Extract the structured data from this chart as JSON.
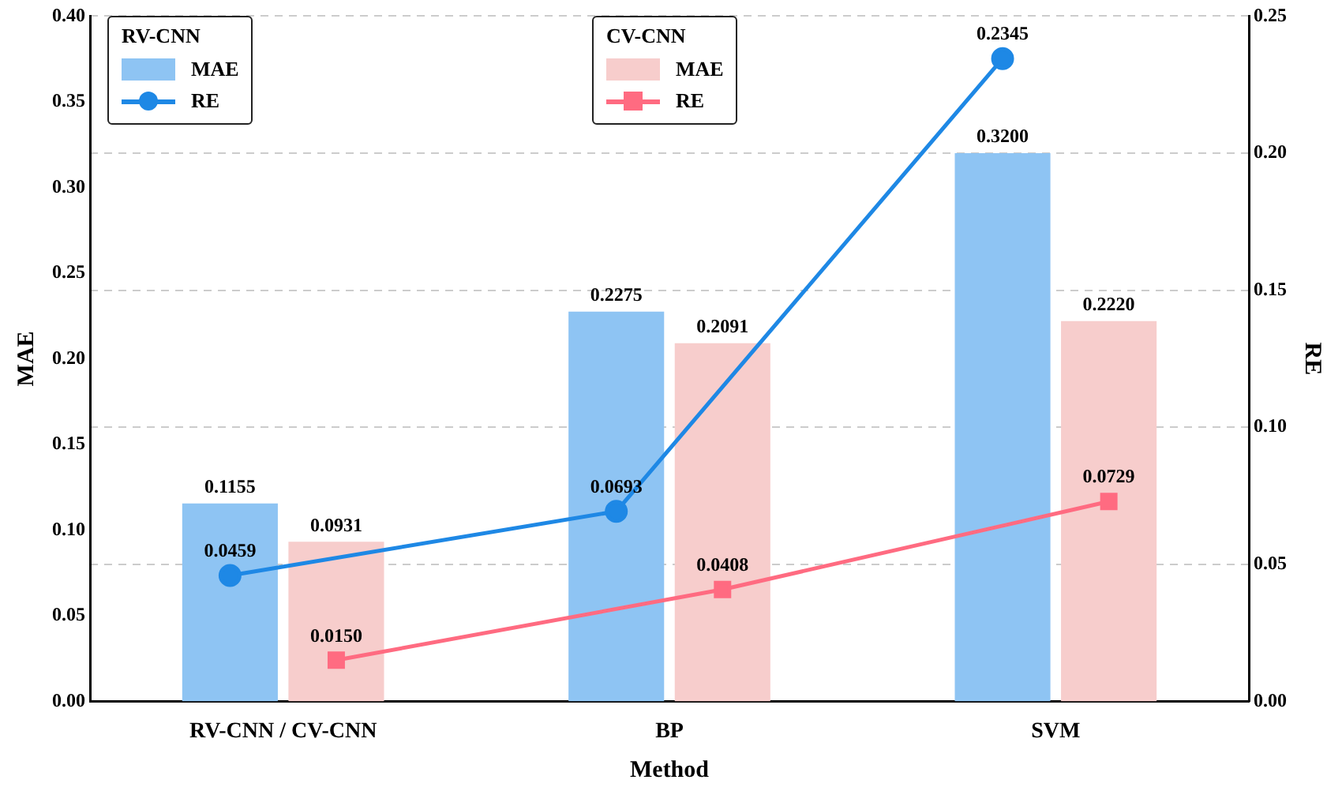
{
  "chart_data": {
    "type": "bar",
    "xlabel": "Method",
    "ylabel": "MAE",
    "y2label": "RE",
    "legend_title": [
      "RV-CNN",
      "CV-CNN"
    ],
    "categories": [
      "RV-CNN / CV-CNN",
      "BP",
      "SVM"
    ],
    "series": [
      {
        "name": "MAE",
        "color": "#8ec4f3",
        "values": [
          0.1155,
          0.2275,
          0.32
        ],
        "value_labels": [
          "0.1155",
          "0.2275",
          "0.3200"
        ]
      },
      {
        "name": "RE",
        "type": "line",
        "axis": "y2",
        "color": "#1e88e5",
        "values": [
          0.0459,
          0.0693,
          0.2345
        ],
        "value_labels": [
          "0.0459",
          "0.0693",
          "0.2345"
        ]
      },
      {
        "name": "MAE",
        "color": "#f7cdcc",
        "values": [
          0.0931,
          0.2091,
          0.222
        ],
        "value_labels": [
          "0.0931",
          "0.2091",
          "0.2220"
        ]
      },
      {
        "name": "RE",
        "type": "line",
        "axis": "y2",
        "color": "#ff6b81",
        "values": [
          0.015,
          0.0408,
          0.0729
        ],
        "marker": "square",
        "value_labels": [
          "0.0150",
          "0.0408",
          "0.0729"
        ]
      }
    ],
    "marker": "circle",
    "ylim": [
      0,
      0.4
    ],
    "yticks": [
      {
        "value": 0,
        "label": "0.00"
      },
      {
        "value": 0.05,
        "label": "0.05"
      },
      {
        "value": 0.1,
        "label": "0.10"
      },
      {
        "value": 0.15,
        "label": "0.15"
      },
      {
        "value": 0.2,
        "label": "0.20"
      },
      {
        "value": 0.25,
        "label": "0.25"
      },
      {
        "value": 0.3,
        "label": "0.30"
      },
      {
        "value": 0.35,
        "label": "0.35"
      },
      {
        "value": 0.4,
        "label": "0.40"
      }
    ],
    "y2lim": [
      0,
      0.25
    ],
    "y2ticks": [
      {
        "value": 0,
        "label": "0.00"
      },
      {
        "value": 0.05,
        "label": "0.05"
      },
      {
        "value": 0.1,
        "label": "0.10"
      },
      {
        "value": 0.15,
        "label": "0.15"
      },
      {
        "value": 0.2,
        "label": "0.20"
      },
      {
        "value": 0.25,
        "label": "0.25"
      }
    ],
    "grid": "y2",
    "legend": "top"
  }
}
